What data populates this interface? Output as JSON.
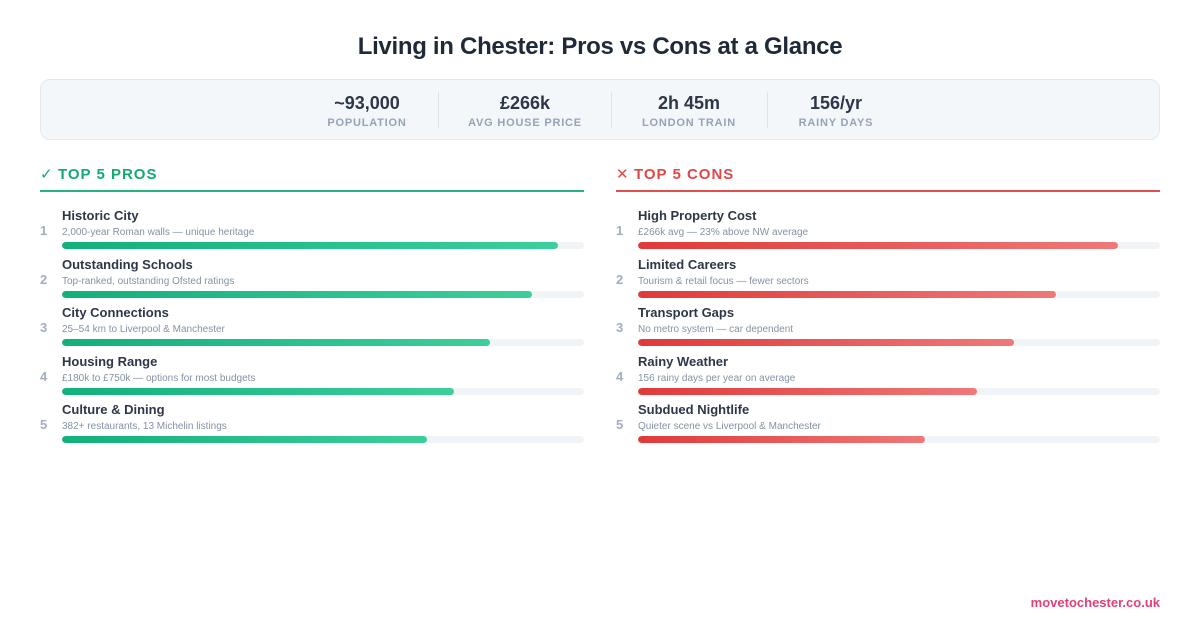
{
  "title": "Living in Chester: Pros vs Cons at a Glance",
  "stats": [
    {
      "value": "~93,000",
      "label": "POPULATION"
    },
    {
      "value": "£266k",
      "label": "AVG HOUSE PRICE"
    },
    {
      "value": "2h 45m",
      "label": "LONDON TRAIN"
    },
    {
      "value": "156/yr",
      "label": "RAINY DAYS"
    }
  ],
  "pros": {
    "mark": "✓",
    "heading": "TOP 5 PROS",
    "color": "#16a972",
    "items": [
      {
        "num": "1",
        "title": "Historic City",
        "desc": "2,000-year Roman walls — unique heritage",
        "score": 0.95
      },
      {
        "num": "2",
        "title": "Outstanding Schools",
        "desc": "Top-ranked, outstanding Ofsted ratings",
        "score": 0.9
      },
      {
        "num": "3",
        "title": "City Connections",
        "desc": "25–54 km to Liverpool & Manchester",
        "score": 0.82
      },
      {
        "num": "4",
        "title": "Housing Range",
        "desc": "£180k to £750k — options for most budgets",
        "score": 0.75
      },
      {
        "num": "5",
        "title": "Culture & Dining",
        "desc": "382+ restaurants, 13 Michelin listings",
        "score": 0.7
      }
    ]
  },
  "cons": {
    "mark": "✕",
    "heading": "TOP 5 CONS",
    "color": "#e04848",
    "items": [
      {
        "num": "1",
        "title": "High Property Cost",
        "desc": "£266k avg — 23% above NW average",
        "score": 0.92
      },
      {
        "num": "2",
        "title": "Limited Careers",
        "desc": "Tourism & retail focus — fewer sectors",
        "score": 0.8
      },
      {
        "num": "3",
        "title": "Transport Gaps",
        "desc": "No metro system — car dependent",
        "score": 0.72
      },
      {
        "num": "4",
        "title": "Rainy Weather",
        "desc": "156 rainy days per year on average",
        "score": 0.65
      },
      {
        "num": "5",
        "title": "Subdued Nightlife",
        "desc": "Quieter scene vs Liverpool & Manchester",
        "score": 0.55
      }
    ]
  },
  "footer": "movetochester.co.uk"
}
